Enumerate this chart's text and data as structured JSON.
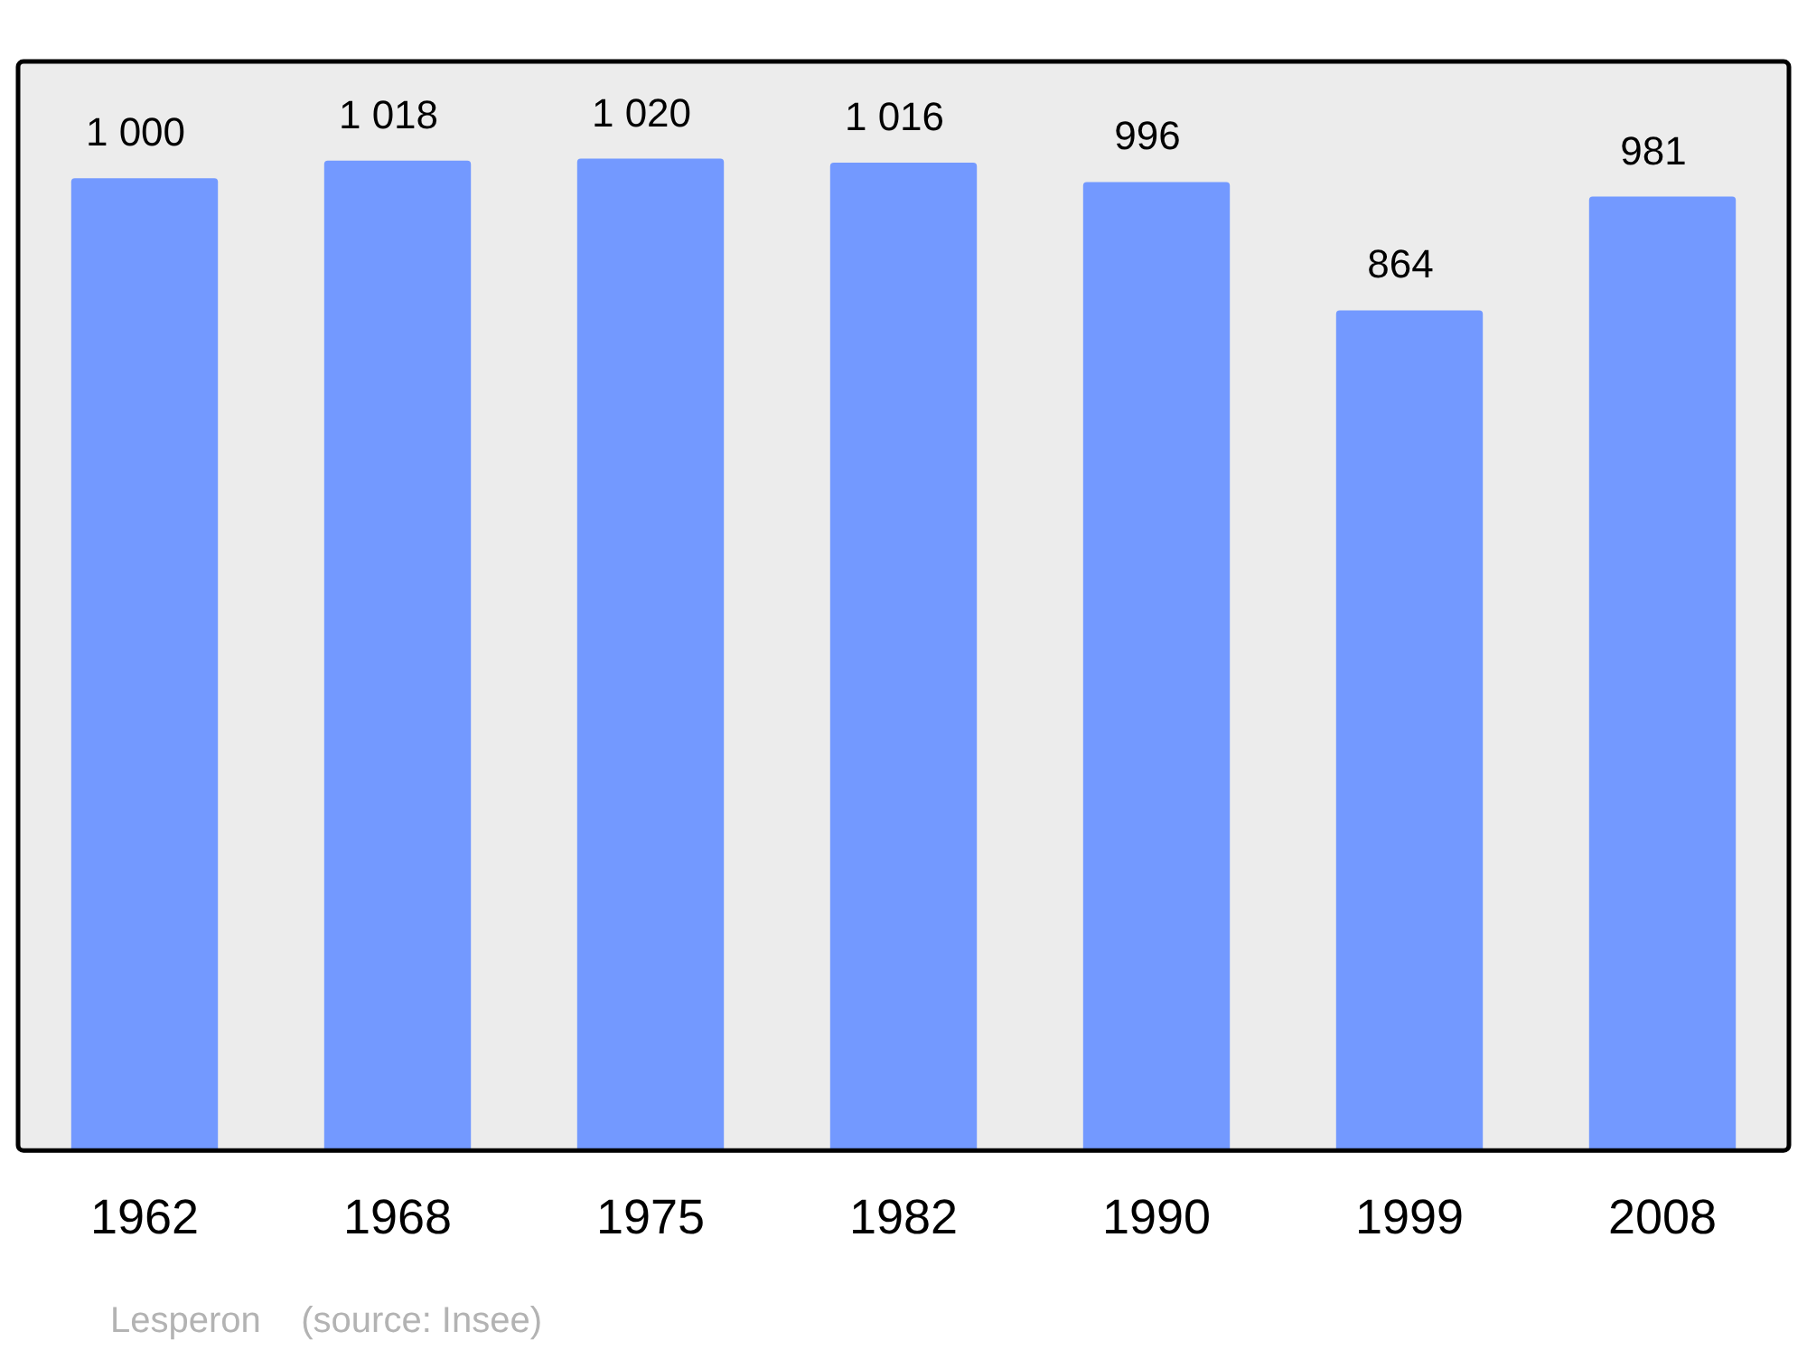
{
  "chart_data": {
    "type": "bar",
    "categories": [
      "1962",
      "1968",
      "1975",
      "1982",
      "1990",
      "1999",
      "2008"
    ],
    "values": [
      1000,
      1018,
      1020,
      1016,
      996,
      864,
      981
    ],
    "value_labels": [
      "1 000",
      "1 018",
      "1 020",
      "1 016",
      "996",
      "864",
      "981"
    ],
    "color": "#7399ff",
    "ylim": [
      0,
      1120
    ],
    "tick_labels": "x",
    "grid": false,
    "legend": false,
    "annotations": [
      "Lesperon    (source: Insee)"
    ]
  }
}
